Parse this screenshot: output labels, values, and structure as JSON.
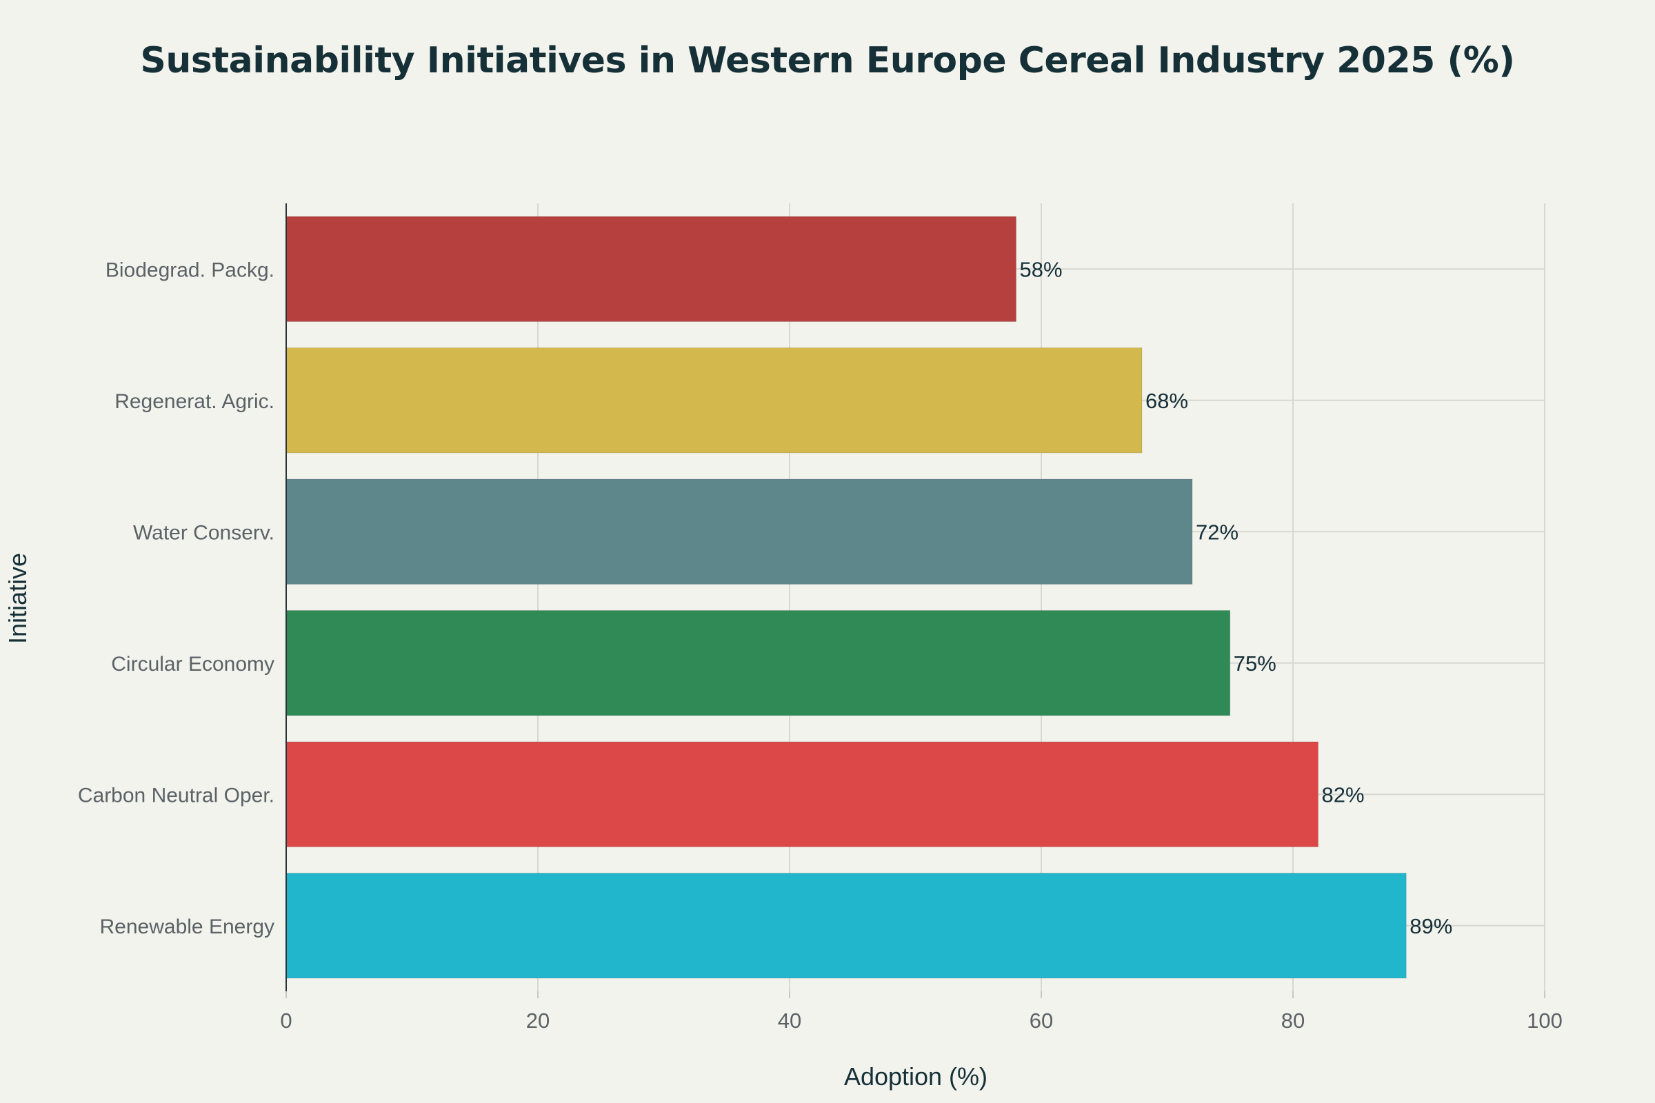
{
  "chart_data": {
    "type": "bar",
    "orientation": "horizontal",
    "title": "Sustainability Initiatives in Western Europe Cereal Industry 2025 (%)",
    "xlabel": "Adoption (%)",
    "ylabel": "Initiative",
    "xlim": [
      0,
      100
    ],
    "xticks": [
      0,
      20,
      40,
      60,
      80,
      100
    ],
    "grid": true,
    "categories": [
      "Biodegrad. Packg.",
      "Regenerat. Agric.",
      "Water Conserv.",
      "Circular Economy",
      "Carbon Neutral Oper.",
      "Renewable Energy"
    ],
    "values": [
      58,
      68,
      72,
      75,
      82,
      89
    ],
    "data_labels": [
      "58%",
      "68%",
      "72%",
      "75%",
      "82%",
      "89%"
    ],
    "colors": [
      "#b5403e",
      "#d3b94d",
      "#5e878c",
      "#2f8a56",
      "#dc4747",
      "#22b6cd"
    ]
  }
}
